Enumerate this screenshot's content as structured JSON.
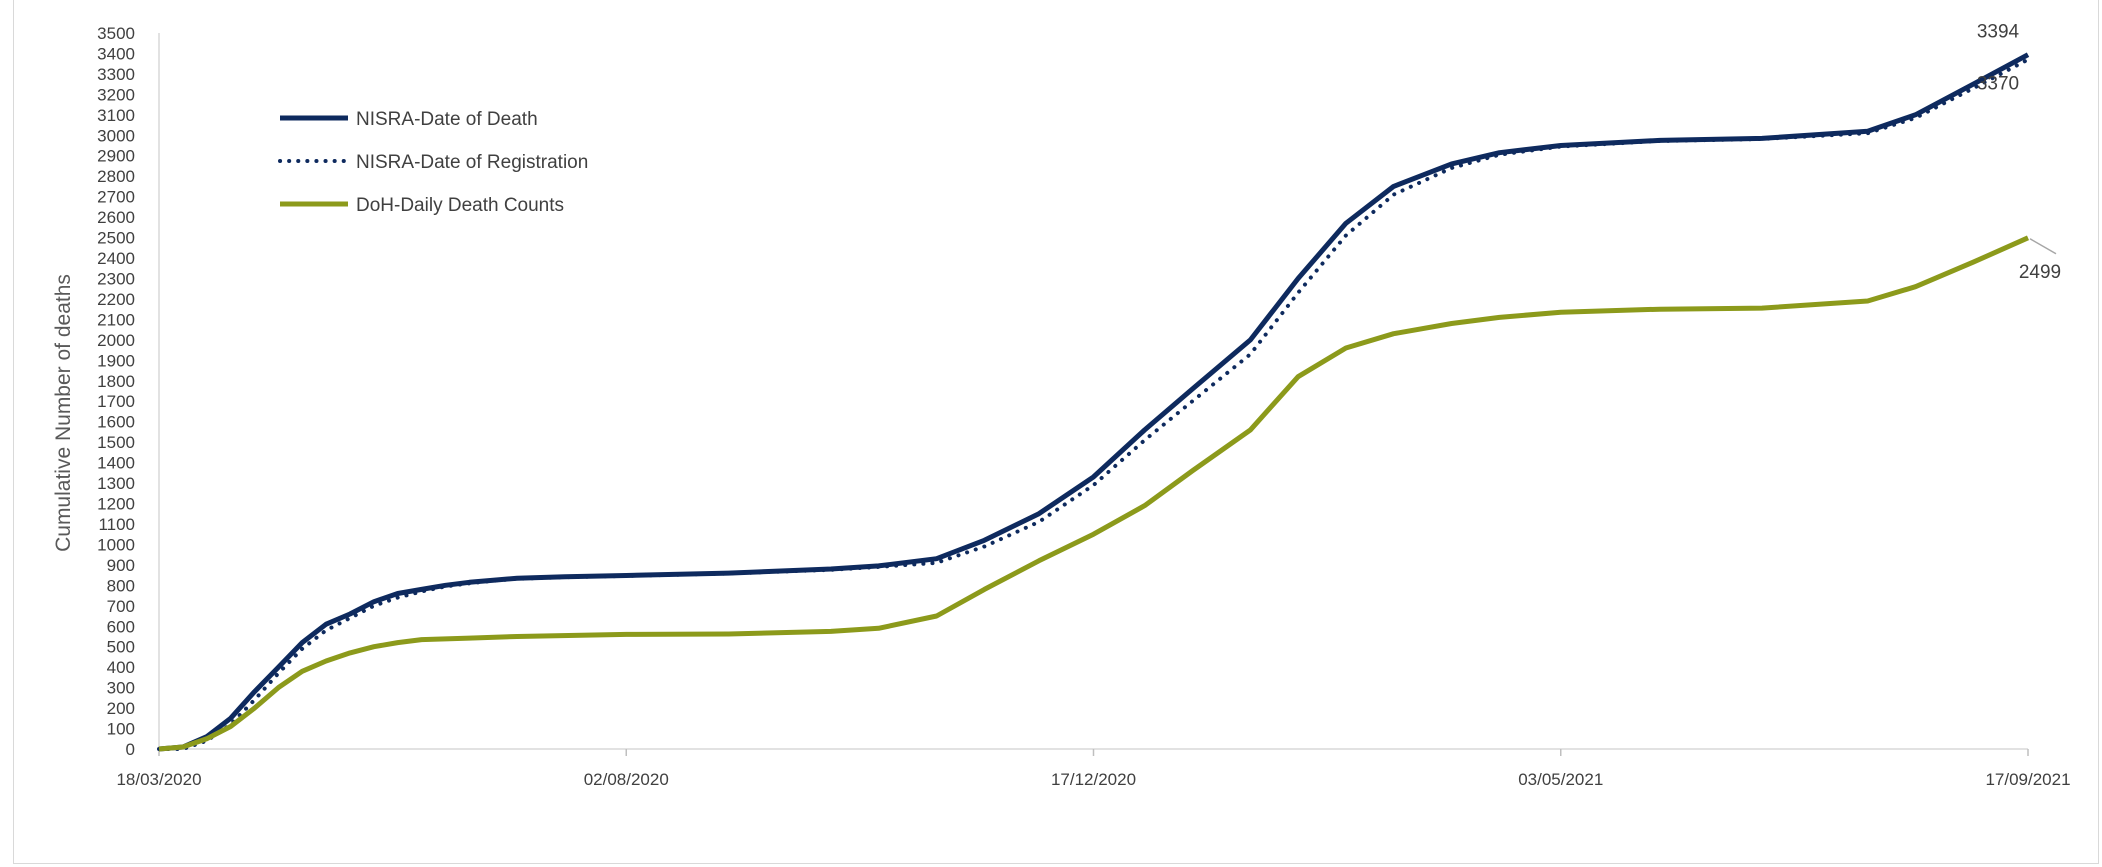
{
  "chart_data": {
    "type": "line",
    "title": "",
    "xlabel": "",
    "ylabel": "Cumulative Number of deaths",
    "ylim": [
      0,
      3500
    ],
    "y_ticks": [
      0,
      100,
      200,
      300,
      400,
      500,
      600,
      700,
      800,
      900,
      1000,
      1100,
      1200,
      1300,
      1400,
      1500,
      1600,
      1700,
      1800,
      1900,
      2000,
      2100,
      2200,
      2300,
      2400,
      2500,
      2600,
      2700,
      2800,
      2900,
      3000,
      3100,
      3200,
      3300,
      3400,
      3500
    ],
    "x_range": [
      "18/03/2020",
      "17/09/2021"
    ],
    "x_ticks": [
      "18/03/2020",
      "02/08/2020",
      "17/12/2020",
      "03/05/2021",
      "17/09/2021"
    ],
    "grid": false,
    "legend_position": "top-left",
    "series": [
      {
        "name": "NISRA-Date of Death",
        "color": "#0e2a5e",
        "style": "solid",
        "points": [
          [
            "18/03/2020",
            0
          ],
          [
            "25/03/2020",
            10
          ],
          [
            "01/04/2020",
            60
          ],
          [
            "08/04/2020",
            150
          ],
          [
            "15/04/2020",
            280
          ],
          [
            "22/04/2020",
            400
          ],
          [
            "29/04/2020",
            520
          ],
          [
            "06/05/2020",
            610
          ],
          [
            "13/05/2020",
            660
          ],
          [
            "20/05/2020",
            720
          ],
          [
            "27/05/2020",
            760
          ],
          [
            "03/06/2020",
            780
          ],
          [
            "10/06/2020",
            800
          ],
          [
            "17/06/2020",
            815
          ],
          [
            "24/06/2020",
            825
          ],
          [
            "01/07/2020",
            835
          ],
          [
            "15/07/2020",
            842
          ],
          [
            "02/08/2020",
            848
          ],
          [
            "01/09/2020",
            860
          ],
          [
            "01/10/2020",
            880
          ],
          [
            "15/10/2020",
            895
          ],
          [
            "01/11/2020",
            930
          ],
          [
            "15/11/2020",
            1020
          ],
          [
            "01/12/2020",
            1150
          ],
          [
            "17/12/2020",
            1330
          ],
          [
            "01/01/2021",
            1560
          ],
          [
            "15/01/2021",
            1760
          ],
          [
            "01/02/2021",
            2000
          ],
          [
            "15/02/2021",
            2300
          ],
          [
            "01/03/2021",
            2570
          ],
          [
            "15/03/2021",
            2750
          ],
          [
            "01/04/2021",
            2860
          ],
          [
            "15/04/2021",
            2915
          ],
          [
            "03/05/2021",
            2950
          ],
          [
            "01/06/2021",
            2975
          ],
          [
            "01/07/2021",
            2985
          ],
          [
            "01/08/2021",
            3020
          ],
          [
            "15/08/2021",
            3100
          ],
          [
            "01/09/2021",
            3250
          ],
          [
            "17/09/2021",
            3394
          ]
        ]
      },
      {
        "name": "NISRA-Date of Registration",
        "color": "#0e2a5e",
        "style": "dotted",
        "points": [
          [
            "18/03/2020",
            0
          ],
          [
            "25/03/2020",
            0
          ],
          [
            "01/04/2020",
            40
          ],
          [
            "08/04/2020",
            120
          ],
          [
            "15/04/2020",
            240
          ],
          [
            "22/04/2020",
            370
          ],
          [
            "29/04/2020",
            490
          ],
          [
            "06/05/2020",
            580
          ],
          [
            "13/05/2020",
            640
          ],
          [
            "20/05/2020",
            700
          ],
          [
            "27/05/2020",
            740
          ],
          [
            "03/06/2020",
            770
          ],
          [
            "10/06/2020",
            795
          ],
          [
            "17/06/2020",
            810
          ],
          [
            "24/06/2020",
            822
          ],
          [
            "01/07/2020",
            832
          ],
          [
            "15/07/2020",
            840
          ],
          [
            "02/08/2020",
            846
          ],
          [
            "01/09/2020",
            858
          ],
          [
            "01/10/2020",
            876
          ],
          [
            "15/10/2020",
            890
          ],
          [
            "01/11/2020",
            910
          ],
          [
            "15/11/2020",
            990
          ],
          [
            "01/12/2020",
            1110
          ],
          [
            "17/12/2020",
            1290
          ],
          [
            "01/01/2021",
            1510
          ],
          [
            "15/01/2021",
            1700
          ],
          [
            "01/02/2021",
            1930
          ],
          [
            "15/02/2021",
            2230
          ],
          [
            "01/03/2021",
            2510
          ],
          [
            "15/03/2021",
            2710
          ],
          [
            "01/04/2021",
            2840
          ],
          [
            "15/04/2021",
            2905
          ],
          [
            "03/05/2021",
            2945
          ],
          [
            "01/06/2021",
            2972
          ],
          [
            "01/07/2021",
            2982
          ],
          [
            "01/08/2021",
            3010
          ],
          [
            "15/08/2021",
            3085
          ],
          [
            "01/09/2021",
            3230
          ],
          [
            "17/09/2021",
            3370
          ]
        ]
      },
      {
        "name": "DoH-Daily Death Counts",
        "color": "#8c9a1b",
        "style": "solid",
        "points": [
          [
            "18/03/2020",
            0
          ],
          [
            "25/03/2020",
            10
          ],
          [
            "01/04/2020",
            50
          ],
          [
            "08/04/2020",
            110
          ],
          [
            "15/04/2020",
            200
          ],
          [
            "22/04/2020",
            300
          ],
          [
            "29/04/2020",
            380
          ],
          [
            "06/05/2020",
            430
          ],
          [
            "13/05/2020",
            470
          ],
          [
            "20/05/2020",
            500
          ],
          [
            "27/05/2020",
            520
          ],
          [
            "03/06/2020",
            535
          ],
          [
            "17/06/2020",
            542
          ],
          [
            "01/07/2020",
            550
          ],
          [
            "02/08/2020",
            560
          ],
          [
            "01/09/2020",
            562
          ],
          [
            "01/10/2020",
            575
          ],
          [
            "15/10/2020",
            590
          ],
          [
            "01/11/2020",
            650
          ],
          [
            "15/11/2020",
            780
          ],
          [
            "01/12/2020",
            920
          ],
          [
            "17/12/2020",
            1050
          ],
          [
            "01/01/2021",
            1190
          ],
          [
            "15/01/2021",
            1360
          ],
          [
            "01/02/2021",
            1560
          ],
          [
            "15/02/2021",
            1820
          ],
          [
            "01/03/2021",
            1960
          ],
          [
            "15/03/2021",
            2030
          ],
          [
            "01/04/2021",
            2080
          ],
          [
            "15/04/2021",
            2110
          ],
          [
            "03/05/2021",
            2135
          ],
          [
            "01/06/2021",
            2150
          ],
          [
            "01/07/2021",
            2155
          ],
          [
            "01/08/2021",
            2190
          ],
          [
            "15/08/2021",
            2260
          ],
          [
            "01/09/2021",
            2380
          ],
          [
            "17/09/2021",
            2499
          ]
        ]
      }
    ],
    "annotations": [
      {
        "text": "3394",
        "series": 0
      },
      {
        "text": "3370",
        "series": 1
      },
      {
        "text": "2499",
        "series": 2
      }
    ]
  }
}
